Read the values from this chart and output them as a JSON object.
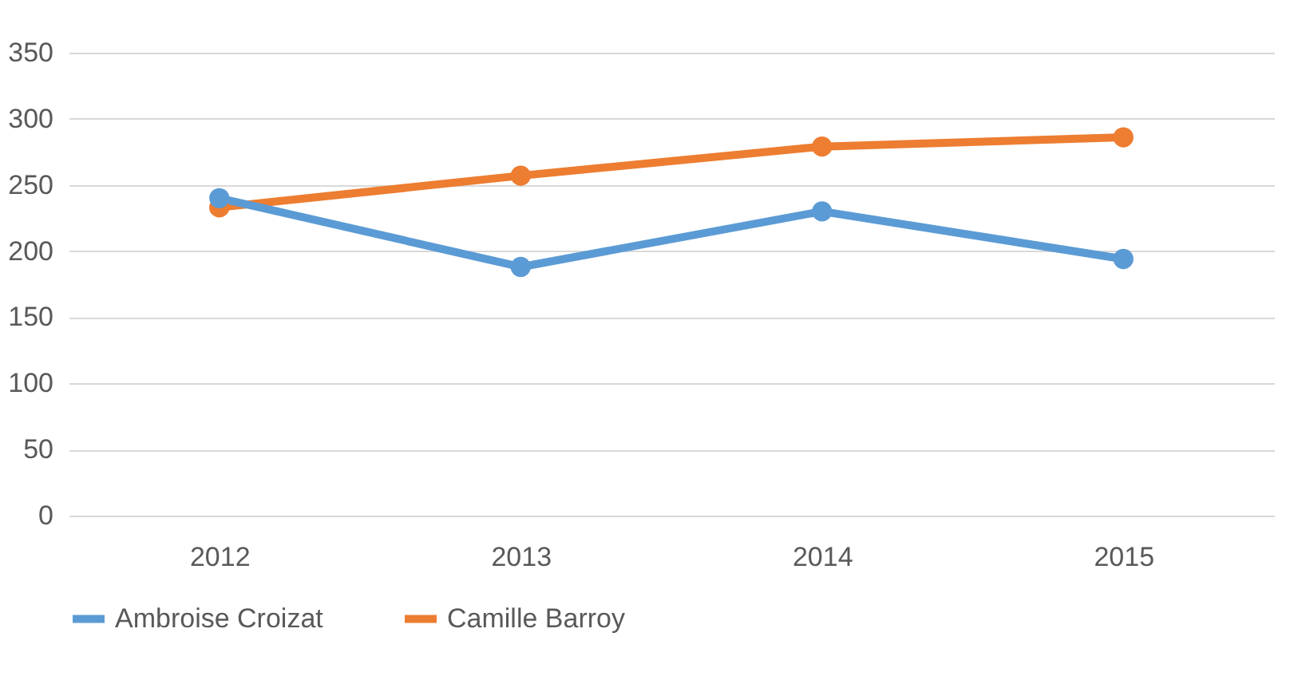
{
  "chart_data": {
    "type": "line",
    "categories": [
      "2012",
      "2013",
      "2014",
      "2015"
    ],
    "series": [
      {
        "name": "Ambroise Croizat",
        "color": "#5b9bd5",
        "values": [
          240,
          188,
          230,
          194
        ]
      },
      {
        "name": "Camille Barroy",
        "color": "#ed7d31",
        "values": [
          233,
          257,
          279,
          286
        ]
      }
    ],
    "ylim": [
      0,
      350
    ],
    "yticks": [
      0,
      50,
      100,
      150,
      200,
      250,
      300,
      350
    ],
    "grid": "y",
    "legend": "bottom left",
    "marker": "circle",
    "line_style": "solid"
  }
}
